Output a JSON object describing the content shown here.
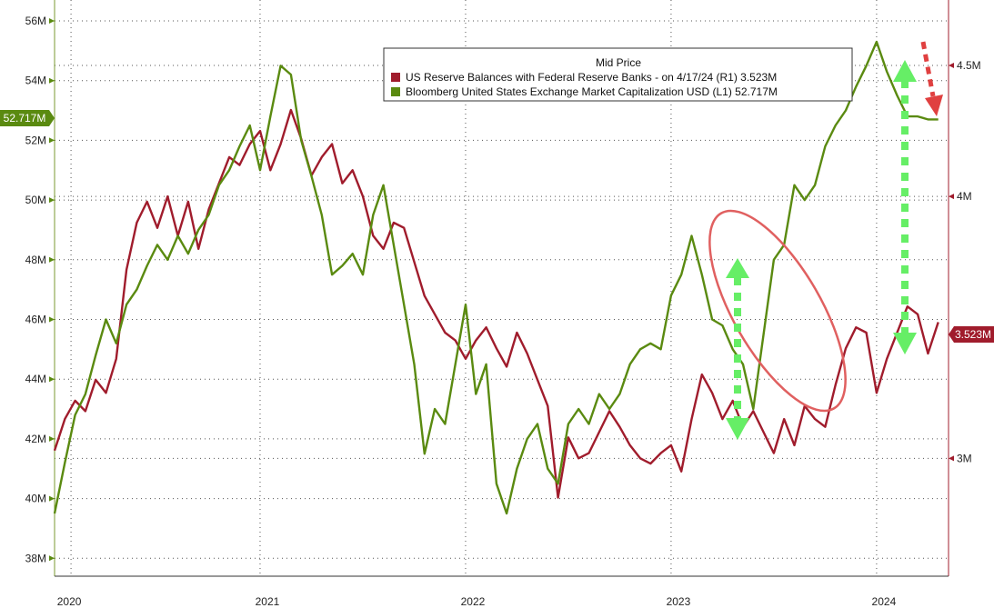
{
  "chart_data": {
    "type": "line",
    "title": "",
    "legend": {
      "placement": "top-right",
      "title": "Mid Price",
      "entries": [
        {
          "label": "US Reserve Balances with Federal Reserve Banks -  on 4/17/24  (R1) 3.523M",
          "color": "#a01c2c"
        },
        {
          "label": "Bloomberg United States Exchange Market Capitalization USD  (L1)      52.717M",
          "color": "#5a8a10"
        }
      ]
    },
    "x_axis": {
      "tick_labels": [
        "2020",
        "2021",
        "2022",
        "2023",
        "2024"
      ],
      "tick_positions": [
        2020.08,
        2021.0,
        2022.0,
        2023.0,
        2024.0
      ],
      "range": [
        2020.0,
        2024.35
      ]
    },
    "y_left": {
      "tick_labels": [
        "38M",
        "40M",
        "42M",
        "44M",
        "46M",
        "48M",
        "50M",
        "52M",
        "54M",
        "56M"
      ],
      "tick_values": [
        38,
        40,
        42,
        44,
        46,
        48,
        50,
        52,
        54,
        56
      ],
      "range": [
        37.4,
        56.7
      ],
      "last_value_label": "52.717M",
      "last_value": 52.717,
      "badge_color": "#5a8a10"
    },
    "y_right": {
      "tick_labels": [
        "3M",
        "4M",
        "4.5M"
      ],
      "tick_values": [
        3.0,
        4.0,
        4.5
      ],
      "range": [
        2.55,
        4.75
      ],
      "last_value_label": "3.523M",
      "last_value": 3.523,
      "badge_color": "#a01c2c"
    },
    "grid": true,
    "series": [
      {
        "name": "US Reserve Balances with Federal Reserve Banks",
        "axis": "right",
        "color": "#a01c2c",
        "x": [
          2020.0,
          2020.05,
          2020.1,
          2020.15,
          2020.2,
          2020.25,
          2020.3,
          2020.35,
          2020.4,
          2020.45,
          2020.5,
          2020.55,
          2020.6,
          2020.65,
          2020.7,
          2020.75,
          2020.8,
          2020.85,
          2020.9,
          2020.95,
          2021.0,
          2021.05,
          2021.1,
          2021.15,
          2021.2,
          2021.25,
          2021.3,
          2021.35,
          2021.4,
          2021.45,
          2021.5,
          2021.55,
          2021.6,
          2021.65,
          2021.7,
          2021.75,
          2021.8,
          2021.85,
          2021.9,
          2021.95,
          2022.0,
          2022.05,
          2022.1,
          2022.15,
          2022.2,
          2022.25,
          2022.3,
          2022.35,
          2022.4,
          2022.45,
          2022.5,
          2022.55,
          2022.6,
          2022.65,
          2022.7,
          2022.75,
          2022.8,
          2022.85,
          2022.9,
          2022.95,
          2023.0,
          2023.05,
          2023.1,
          2023.15,
          2023.2,
          2023.25,
          2023.3,
          2023.35,
          2023.4,
          2023.45,
          2023.5,
          2023.55,
          2023.6,
          2023.65,
          2023.7,
          2023.75,
          2023.8,
          2023.85,
          2023.9,
          2023.95,
          2024.0,
          2024.05,
          2024.1,
          2024.15,
          2024.2,
          2024.25,
          2024.3
        ],
        "values": [
          3.03,
          3.15,
          3.22,
          3.18,
          3.3,
          3.25,
          3.38,
          3.72,
          3.9,
          3.98,
          3.88,
          4.0,
          3.85,
          3.98,
          3.8,
          3.95,
          4.05,
          4.15,
          4.12,
          4.2,
          4.25,
          4.1,
          4.2,
          4.33,
          4.22,
          4.08,
          4.15,
          4.2,
          4.05,
          4.1,
          4.0,
          3.85,
          3.8,
          3.9,
          3.88,
          3.75,
          3.62,
          3.55,
          3.48,
          3.45,
          3.38,
          3.45,
          3.5,
          3.42,
          3.35,
          3.48,
          3.4,
          3.3,
          3.2,
          2.85,
          3.08,
          3.0,
          3.02,
          3.1,
          3.18,
          3.12,
          3.05,
          3.0,
          2.98,
          3.02,
          3.05,
          2.95,
          3.15,
          3.32,
          3.25,
          3.15,
          3.22,
          3.12,
          3.18,
          3.1,
          3.02,
          3.15,
          3.05,
          3.2,
          3.15,
          3.12,
          3.28,
          3.42,
          3.5,
          3.48,
          3.25,
          3.38,
          3.48,
          3.58,
          3.55,
          3.4,
          3.52
        ]
      },
      {
        "name": "Bloomberg United States Exchange Market Capitalization USD",
        "axis": "left",
        "color": "#5a8a10",
        "x": [
          2020.0,
          2020.05,
          2020.1,
          2020.15,
          2020.2,
          2020.25,
          2020.3,
          2020.35,
          2020.4,
          2020.45,
          2020.5,
          2020.55,
          2020.6,
          2020.65,
          2020.7,
          2020.75,
          2020.8,
          2020.85,
          2020.9,
          2020.95,
          2021.0,
          2021.05,
          2021.1,
          2021.15,
          2021.2,
          2021.25,
          2021.3,
          2021.35,
          2021.4,
          2021.45,
          2021.5,
          2021.55,
          2021.6,
          2021.65,
          2021.7,
          2021.75,
          2021.8,
          2021.85,
          2021.9,
          2021.95,
          2022.0,
          2022.05,
          2022.1,
          2022.15,
          2022.2,
          2022.25,
          2022.3,
          2022.35,
          2022.4,
          2022.45,
          2022.5,
          2022.55,
          2022.6,
          2022.65,
          2022.7,
          2022.75,
          2022.8,
          2022.85,
          2022.9,
          2022.95,
          2023.0,
          2023.05,
          2023.1,
          2023.15,
          2023.2,
          2023.25,
          2023.3,
          2023.35,
          2023.4,
          2023.45,
          2023.5,
          2023.55,
          2023.6,
          2023.65,
          2023.7,
          2023.75,
          2023.8,
          2023.85,
          2023.9,
          2023.95,
          2024.0,
          2024.05,
          2024.1,
          2024.15,
          2024.2,
          2024.25,
          2024.3
        ],
        "values": [
          39.5,
          41.2,
          42.8,
          43.5,
          44.8,
          46.0,
          45.2,
          46.5,
          47.0,
          47.8,
          48.5,
          48.0,
          48.8,
          48.2,
          49.0,
          49.5,
          50.5,
          51.0,
          51.8,
          52.5,
          51.0,
          52.8,
          54.5,
          54.2,
          52.0,
          50.8,
          49.5,
          47.5,
          47.8,
          48.2,
          47.5,
          49.5,
          50.5,
          48.5,
          46.5,
          44.5,
          41.5,
          43.0,
          42.5,
          44.5,
          46.5,
          43.5,
          44.5,
          40.5,
          39.5,
          41.0,
          42.0,
          42.5,
          41.0,
          40.5,
          42.5,
          43.0,
          42.5,
          43.5,
          43.0,
          43.5,
          44.5,
          45.0,
          45.2,
          45.0,
          46.8,
          47.5,
          48.8,
          47.5,
          46.0,
          45.8,
          45.0,
          44.5,
          43.0,
          45.5,
          48.0,
          48.5,
          50.5,
          50.0,
          50.5,
          51.8,
          52.5,
          53.0,
          53.8,
          54.5,
          55.3,
          54.3,
          53.5,
          52.8,
          52.8,
          52.7,
          52.7
        ]
      }
    ],
    "annotations": [
      {
        "type": "ellipse",
        "color": "#e05a5a",
        "around": "2023.0-2023.5"
      },
      {
        "type": "double-arrow",
        "color": "#66ee66",
        "label": "",
        "at": 2023.12
      },
      {
        "type": "double-arrow",
        "color": "#66ee66",
        "label": "",
        "at": 2024.07
      },
      {
        "type": "arrow-down",
        "color": "#e04040",
        "label": "",
        "at": 2024.2
      }
    ]
  }
}
